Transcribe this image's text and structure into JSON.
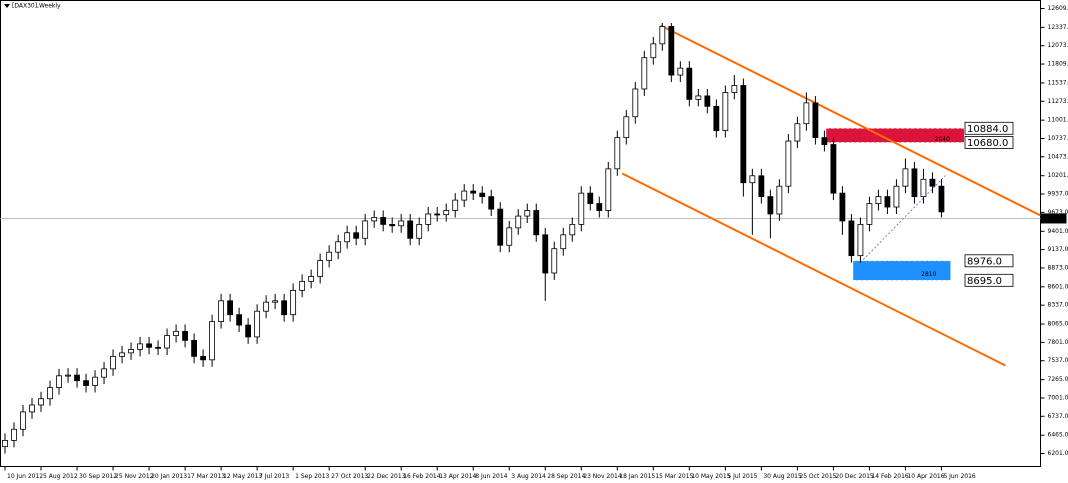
{
  "chart_data": {
    "type": "candlestick",
    "title": "[DAX30],Weekly",
    "x": [
      0,
      2,
      4,
      6,
      8,
      10,
      12,
      14,
      16,
      18,
      20,
      22,
      24,
      26,
      28,
      30,
      32,
      34,
      36,
      38,
      40,
      42,
      44,
      46,
      48,
      50,
      52,
      54,
      56,
      58,
      60,
      62,
      64,
      66,
      68,
      70,
      72,
      74,
      76,
      78,
      80,
      82,
      84,
      86,
      88,
      90,
      92,
      94,
      96,
      98,
      100,
      102,
      104,
      106,
      108,
      110,
      112,
      114,
      116,
      118,
      120,
      122,
      124,
      126,
      128,
      130,
      132,
      134,
      136,
      138,
      140,
      142,
      144,
      146,
      148,
      150,
      152,
      154,
      156,
      158,
      160,
      162,
      164,
      166,
      168,
      170,
      172,
      174,
      176,
      178,
      180,
      182,
      184,
      186,
      188,
      190,
      192,
      194,
      196,
      198,
      200,
      202,
      204,
      206,
      208
    ],
    "open": [
      6300,
      6390,
      6550,
      6800,
      6900,
      6990,
      7150,
      7320,
      7330,
      7250,
      7180,
      7300,
      7420,
      7600,
      7650,
      7700,
      7780,
      7730,
      7720,
      7900,
      7960,
      7830,
      7600,
      7550,
      8100,
      8400,
      8200,
      8050,
      7880,
      8250,
      8380,
      8400,
      8200,
      8550,
      8680,
      8750,
      8980,
      9100,
      9250,
      9380,
      9300,
      9550,
      9600,
      9500,
      9480,
      9550,
      9300,
      9500,
      9650,
      9640,
      9700,
      9850,
      9980,
      9950,
      9900,
      9720,
      9200,
      9450,
      9620,
      9700,
      9350,
      8800,
      9150,
      9350,
      9500,
      9950,
      9800,
      9700,
      10300,
      10750,
      11050,
      11450,
      11900,
      12100,
      12350,
      11650,
      11750,
      11300,
      11350,
      11200,
      10850,
      11400,
      11500,
      10100,
      10200,
      9900,
      9650,
      10050,
      10700,
      10950,
      11250,
      10750,
      10650,
      9950,
      9550,
      9050,
      9500,
      9800,
      9900,
      9750,
      10050,
      10300,
      9900,
      10150,
      10050
    ],
    "high": [
      6490,
      6650,
      6900,
      7000,
      7090,
      7250,
      7420,
      7430,
      7430,
      7350,
      7400,
      7520,
      7700,
      7750,
      7800,
      7880,
      7880,
      7830,
      8000,
      8060,
      8060,
      7930,
      7700,
      8200,
      8500,
      8500,
      8300,
      8150,
      8350,
      8480,
      8500,
      8500,
      8650,
      8780,
      8850,
      9080,
      9200,
      9350,
      9480,
      9480,
      9650,
      9700,
      9700,
      9600,
      9650,
      9650,
      9600,
      9750,
      9750,
      9800,
      9950,
      10080,
      10080,
      10050,
      10000,
      9820,
      9550,
      9720,
      9800,
      9800,
      9450,
      9250,
      9450,
      9600,
      10050,
      10050,
      9900,
      10400,
      10850,
      11150,
      11550,
      12000,
      12200,
      12400,
      12400,
      11850,
      11850,
      11450,
      11450,
      11300,
      11500,
      11650,
      11600,
      10300,
      10300,
      10000,
      10150,
      10800,
      11050,
      11400,
      11350,
      10850,
      10750,
      10050,
      9650,
      9600,
      9900,
      10000,
      10000,
      10150,
      10450,
      10400,
      10300,
      10250,
      10150
    ],
    "low": [
      6200,
      6290,
      6450,
      6700,
      6800,
      6890,
      7050,
      7220,
      7150,
      7080,
      7080,
      7200,
      7320,
      7500,
      7550,
      7600,
      7630,
      7620,
      7620,
      7800,
      7730,
      7500,
      7450,
      7450,
      8000,
      8100,
      7950,
      7780,
      7780,
      8150,
      8280,
      8100,
      8100,
      8450,
      8580,
      8650,
      8880,
      9000,
      9150,
      9200,
      9200,
      9450,
      9400,
      9380,
      9380,
      9200,
      9200,
      9400,
      9540,
      9540,
      9600,
      9750,
      9850,
      9800,
      9620,
      9100,
      9100,
      9350,
      9520,
      9250,
      8400,
      8700,
      9050,
      9250,
      9400,
      9700,
      9600,
      9600,
      10200,
      10650,
      10950,
      11350,
      11800,
      12000,
      11550,
      11550,
      11200,
      11200,
      11100,
      10750,
      10750,
      11300,
      9900,
      9350,
      9800,
      9300,
      9550,
      9950,
      10600,
      10850,
      10650,
      10550,
      9850,
      9350,
      8950,
      8950,
      9400,
      9700,
      9650,
      9650,
      9950,
      9800,
      9800,
      9950,
      9600
    ],
    "close": [
      6390,
      6550,
      6800,
      6900,
      6990,
      7150,
      7320,
      7330,
      7250,
      7180,
      7300,
      7420,
      7600,
      7650,
      7700,
      7780,
      7730,
      7720,
      7900,
      7960,
      7830,
      7600,
      7550,
      8100,
      8400,
      8200,
      8050,
      7880,
      8250,
      8380,
      8400,
      8200,
      8550,
      8680,
      8750,
      8980,
      9100,
      9250,
      9380,
      9300,
      9550,
      9600,
      9500,
      9480,
      9550,
      9300,
      9500,
      9650,
      9640,
      9700,
      9850,
      9980,
      9950,
      9900,
      9720,
      9200,
      9450,
      9620,
      9700,
      9350,
      8800,
      9150,
      9350,
      9500,
      9950,
      9800,
      9700,
      10300,
      10750,
      11050,
      11450,
      11900,
      12100,
      12350,
      11650,
      11750,
      11300,
      11350,
      11200,
      10850,
      11400,
      11500,
      10100,
      10200,
      9900,
      9650,
      10050,
      10700,
      10950,
      11250,
      10750,
      10650,
      9950,
      9550,
      9050,
      9500,
      9800,
      9900,
      9750,
      10050,
      10300,
      9900,
      10150,
      10050,
      9680
    ],
    "xlim": [
      -1,
      230
    ],
    "ylim": [
      6014,
      12724
    ],
    "yticks": [
      {
        "value": 12609,
        "label": "12609.0"
      },
      {
        "value": 12337,
        "label": "12337.0"
      },
      {
        "value": 12073,
        "label": "12073.0"
      },
      {
        "value": 11809,
        "label": "11809.0"
      },
      {
        "value": 11537,
        "label": "11537.0"
      },
      {
        "value": 11273,
        "label": "11273.0"
      },
      {
        "value": 11001,
        "label": "11001.0"
      },
      {
        "value": 10737,
        "label": "10737.0"
      },
      {
        "value": 10473,
        "label": "10473.0"
      },
      {
        "value": 10201,
        "label": "10201.0"
      },
      {
        "value": 9937,
        "label": "9937.0"
      },
      {
        "value": 9673,
        "label": "9673.0"
      },
      {
        "value": 9401,
        "label": "9401.0"
      },
      {
        "value": 9137,
        "label": "9137.0"
      },
      {
        "value": 8873,
        "label": "8873.0"
      },
      {
        "value": 8601,
        "label": "8601.0"
      },
      {
        "value": 8337,
        "label": "8337.0"
      },
      {
        "value": 8065,
        "label": "8065.0"
      },
      {
        "value": 7801,
        "label": "7801.0"
      },
      {
        "value": 7537,
        "label": "7537.0"
      },
      {
        "value": 7265,
        "label": "7265.0"
      },
      {
        "value": 7001,
        "label": "7001.0"
      },
      {
        "value": 6737,
        "label": "6737.0"
      },
      {
        "value": 6465,
        "label": "6465.0"
      },
      {
        "value": 6201,
        "label": "6201.0"
      }
    ],
    "xticks": [
      {
        "value": 0,
        "label": "10 Jun 2012"
      },
      {
        "value": 8,
        "label": "5 Aug 2012"
      },
      {
        "value": 16,
        "label": "30 Sep 2012"
      },
      {
        "value": 24,
        "label": "25 Nov 2012"
      },
      {
        "value": 32,
        "label": "20 Jan 2013"
      },
      {
        "value": 40,
        "label": "17 Mar 2013"
      },
      {
        "value": 48,
        "label": "12 May 2013"
      },
      {
        "value": 56,
        "label": "7 Jul 2013"
      },
      {
        "value": 64,
        "label": "1 Sep 2013"
      },
      {
        "value": 72,
        "label": "27 Oct 2013"
      },
      {
        "value": 80,
        "label": "22 Dec 2013"
      },
      {
        "value": 88,
        "label": "16 Feb 2014"
      },
      {
        "value": 96,
        "label": "13 Apr 2014"
      },
      {
        "value": 104,
        "label": "8 Jun 2014"
      },
      {
        "value": 112,
        "label": "3 Aug 2014"
      },
      {
        "value": 120,
        "label": "28 Sep 2014"
      },
      {
        "value": 128,
        "label": "23 Nov 2014"
      },
      {
        "value": 136,
        "label": "18 Jan 2015"
      },
      {
        "value": 144,
        "label": "15 Mar 2015"
      },
      {
        "value": 152,
        "label": "10 May 2015"
      },
      {
        "value": 160,
        "label": "5 Jul 2015"
      },
      {
        "value": 168,
        "label": "30 Aug 2015"
      },
      {
        "value": 176,
        "label": "25 Oct 2015"
      },
      {
        "value": 184,
        "label": "20 Dec 2015"
      },
      {
        "value": 192,
        "label": "14 Feb 2016"
      },
      {
        "value": 200,
        "label": "10 Apr 2016"
      },
      {
        "value": 208,
        "label": "5 Jun 2016"
      }
    ],
    "current_price": {
      "value": 9585.5,
      "label": "9585.5"
    },
    "trendlines": [
      {
        "color": "#ff6a00",
        "x": [
          145.6,
          230
        ],
        "y": [
          12364,
          9628
        ]
      },
      {
        "color": "#ff6a00",
        "x": [
          137.1,
          222.2
        ],
        "y": [
          10233,
          7468
        ]
      },
      {
        "color": "#6a5acd",
        "x": [
          190,
          208.9
        ],
        "y": [
          8951,
          10204
        ]
      }
    ],
    "zones": [
      {
        "color": "#dc143c",
        "label": "2040",
        "x": [
          182.4,
          213
        ],
        "y": [
          {
            "value": 10884,
            "label": "10884.0"
          },
          {
            "value": 10680,
            "label": "10680.0"
          }
        ]
      },
      {
        "color": "#1e90ff",
        "label": "2810",
        "x": [
          188.4,
          210
        ],
        "y": [
          {
            "value": 8976,
            "label": "8976.0"
          },
          {
            "value": 8695,
            "label": "8695.0"
          }
        ]
      }
    ]
  }
}
